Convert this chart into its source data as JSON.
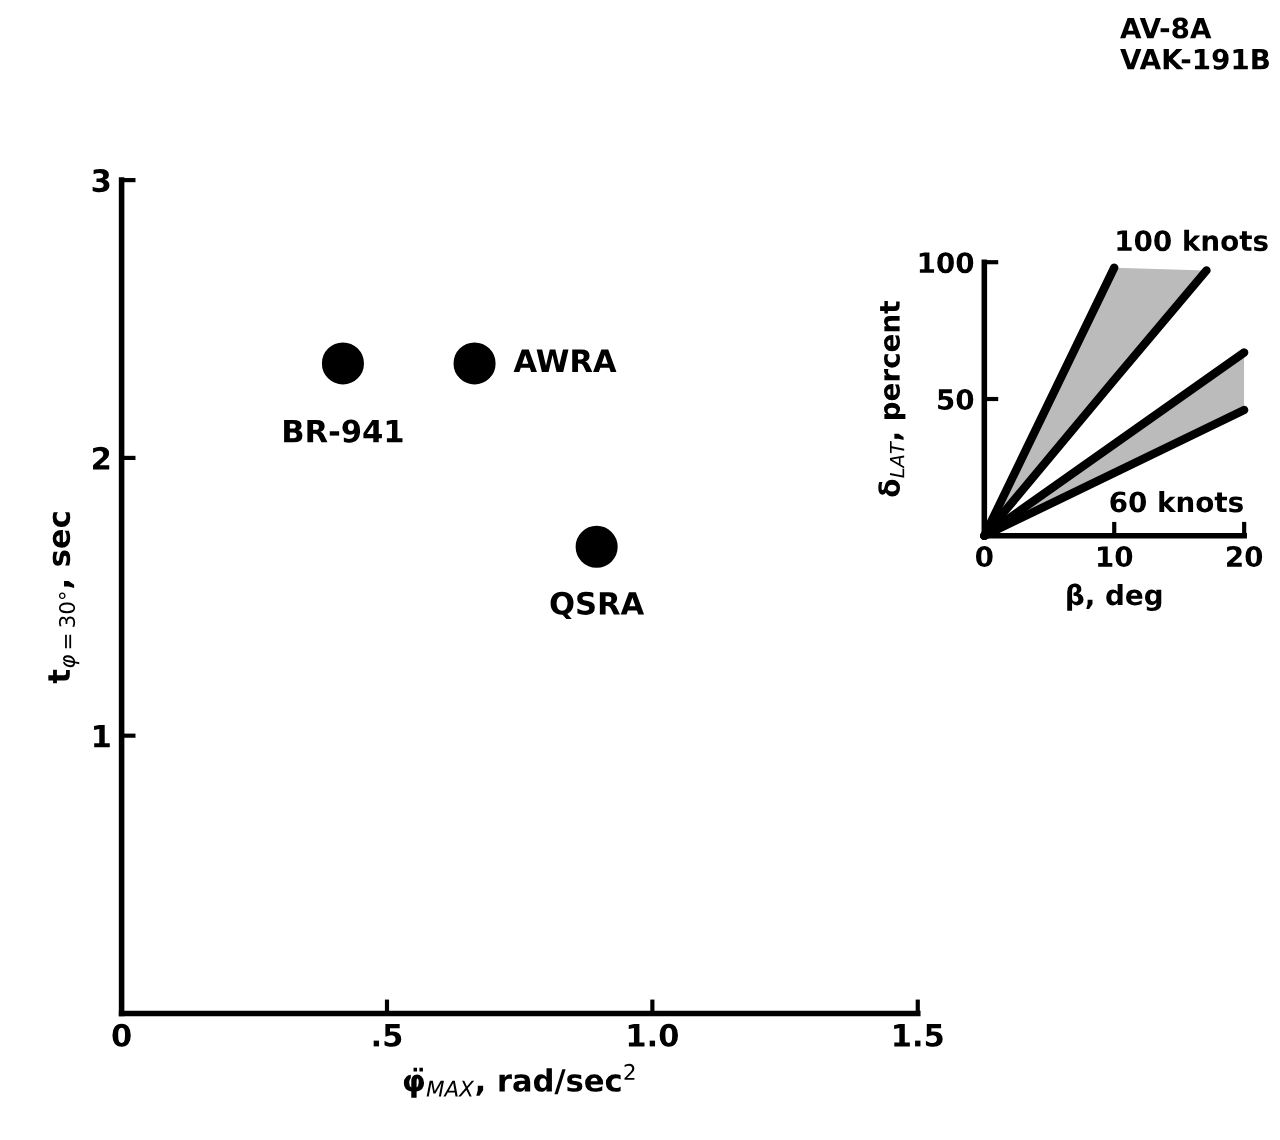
{
  "chart_data": [
    {
      "type": "scatter",
      "xlabel": "φ̈$_{MAX}$, rad/sec$^{2}$",
      "ylabel": "t$_{φ=30°}$, sec",
      "x": [
        0.417,
        0.665,
        0.895
      ],
      "values": [
        2.34,
        2.34,
        1.68
      ],
      "color": "#000000",
      "marker": "circle",
      "xlim": [
        0,
        1.5
      ],
      "ylim": [
        0,
        3
      ],
      "xticks": [
        0,
        {
          "value": 0.5,
          "label": ".5"
        },
        {
          "value": 1.0,
          "label": "1.0"
        },
        1.5
      ],
      "yticks": [
        {
          "value": 0,
          "label": null
        },
        1,
        2,
        3
      ],
      "annotations": [
        {
          "text": "BR-941",
          "x": 0.417,
          "y": 2.34
        },
        {
          "text": "AWRA",
          "x": 0.665,
          "y": 2.34
        },
        {
          "text": "QSRA",
          "x": 0.895,
          "y": 1.68
        },
        "AV-8A\nVAK-191B"
      ],
      "grid": false,
      "legend": false
    },
    {
      "type": "line",
      "xlabel": "β, deg",
      "ylabel": "δ$_{LAT}$, percent",
      "series": [
        {
          "name": "100 knots",
          "color": "#000000",
          "x": [
            0,
            10
          ],
          "values": [
            0,
            98
          ]
        },
        {
          "color": "#000000",
          "x": [
            0,
            10,
            17.1
          ],
          "values": [
            0,
            57,
            97
          ],
          "lower": [
            0,
            57,
            97
          ],
          "upper": [
            0,
            98,
            97
          ]
        },
        {
          "color": "#000000",
          "x": [
            0,
            20
          ],
          "values": [
            0,
            67
          ]
        },
        {
          "name": "60 knots",
          "color": "#000000",
          "x": [
            0,
            20
          ],
          "values": [
            0,
            46
          ],
          "lower": [
            0,
            46
          ],
          "upper": [
            0,
            67
          ]
        }
      ],
      "xlim": [
        0,
        20
      ],
      "ylim": [
        0,
        100
      ],
      "xticks": [
        0,
        10,
        20
      ],
      "yticks": [
        {
          "value": 0,
          "label": null
        },
        50,
        100
      ],
      "grid": false,
      "legend": false,
      "marker": "none",
      "line_style": "solid"
    }
  ]
}
